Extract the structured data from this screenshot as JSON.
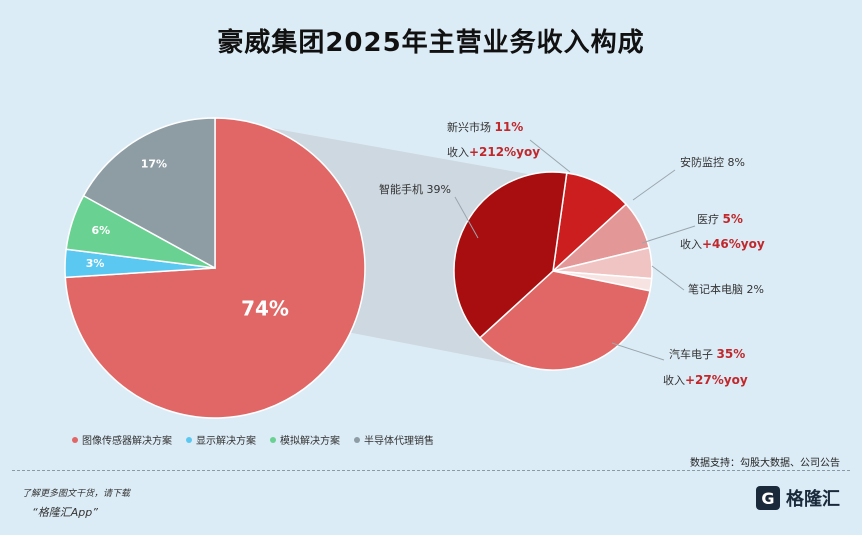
{
  "title": "豪威集团2025年主营业务收入构成",
  "chart_data": [
    {
      "type": "pie",
      "title": "",
      "slices": [
        {
          "name": "图像传感器解决方案",
          "value": 74,
          "label": "74%",
          "color": "#e06766"
        },
        {
          "name": "显示解决方案",
          "value": 3,
          "label": "3%",
          "color": "#5ac8f0"
        },
        {
          "name": "模拟解决方案",
          "value": 6,
          "label": "6%",
          "color": "#69d292"
        },
        {
          "name": "半导体代理销售",
          "value": 17,
          "label": "17%",
          "color": "#8e9ca4"
        }
      ],
      "legend": "bottom-left"
    },
    {
      "type": "pie",
      "title": "",
      "slices": [
        {
          "name": "新兴市场",
          "value": 11,
          "label": "11%",
          "growth": "+212%yoy",
          "color": "#cc1d1f"
        },
        {
          "name": "安防监控",
          "value": 8,
          "label": "8%",
          "color": "#e49797"
        },
        {
          "name": "医疗",
          "value": 5,
          "label": "5%",
          "growth": "+46%yoy",
          "color": "#f1c4c4"
        },
        {
          "name": "笔记本电脑",
          "value": 2,
          "label": "2%",
          "color": "#f8e3e3"
        },
        {
          "name": "汽车电子",
          "value": 35,
          "label": "35%",
          "growth": "+27%yoy",
          "color": "#e06766"
        },
        {
          "name": "智能手机",
          "value": 39,
          "label": "39%",
          "color": "#a80e10"
        }
      ]
    }
  ],
  "annotations": {
    "growth_prefix": "收入"
  },
  "source": "数据支持：勾股大数据、公司公告",
  "footer": {
    "line1": "了解更多图文干货，请下载",
    "line2": "“格隆汇App”",
    "brand_name": "格隆汇",
    "brand_mark": "G"
  }
}
